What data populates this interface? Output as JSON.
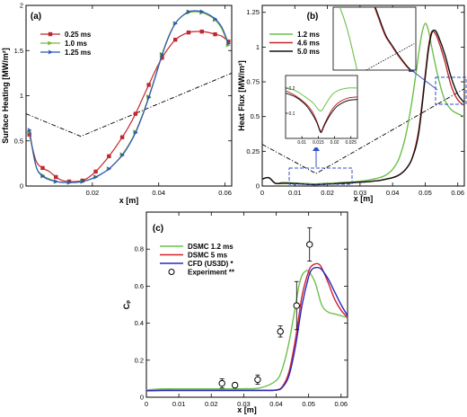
{
  "chart_data": [
    {
      "id": "a",
      "type": "line",
      "panel_label": "(a)",
      "xlabel": "x [m]",
      "ylabel": "Surface Heating [MW/m²]",
      "xlim": [
        0,
        0.062
      ],
      "ylim": [
        0,
        2.0
      ],
      "xticks": [
        0.02,
        0.04,
        0.06
      ],
      "xtick_labels": [
        "0.02",
        "0.04",
        "0.06"
      ],
      "yticks": [
        0,
        0.5,
        1,
        1.5,
        2
      ],
      "ytick_labels": [
        "0",
        "0.5",
        "1",
        "1.5",
        "2"
      ],
      "legend_position": "top-left",
      "series": [
        {
          "name": "0.25 ms",
          "color": "#c0282d",
          "marker": "square",
          "x": [
            0.001,
            0.003,
            0.005,
            0.007,
            0.009,
            0.011,
            0.013,
            0.015,
            0.017,
            0.019,
            0.021,
            0.023,
            0.025,
            0.027,
            0.029,
            0.031,
            0.033,
            0.035,
            0.037,
            0.039,
            0.041,
            0.043,
            0.045,
            0.047,
            0.049,
            0.051,
            0.053,
            0.055,
            0.057,
            0.059,
            0.061
          ],
          "y": [
            0.57,
            0.28,
            0.2,
            0.16,
            0.1,
            0.06,
            0.05,
            0.05,
            0.06,
            0.1,
            0.16,
            0.24,
            0.33,
            0.43,
            0.54,
            0.66,
            0.8,
            0.96,
            1.12,
            1.28,
            1.42,
            1.53,
            1.62,
            1.67,
            1.7,
            1.71,
            1.71,
            1.7,
            1.68,
            1.66,
            1.6
          ]
        },
        {
          "name": "1.0 ms",
          "color": "#7ab83a",
          "marker": "triangle",
          "x": [
            0.001,
            0.003,
            0.005,
            0.007,
            0.009,
            0.011,
            0.013,
            0.015,
            0.017,
            0.019,
            0.021,
            0.023,
            0.025,
            0.027,
            0.029,
            0.031,
            0.033,
            0.035,
            0.037,
            0.039,
            0.041,
            0.043,
            0.045,
            0.047,
            0.049,
            0.051,
            0.053,
            0.055,
            0.057,
            0.059,
            0.061
          ],
          "y": [
            0.6,
            0.22,
            0.12,
            0.08,
            0.05,
            0.04,
            0.04,
            0.04,
            0.05,
            0.07,
            0.1,
            0.14,
            0.19,
            0.26,
            0.35,
            0.46,
            0.6,
            0.78,
            0.99,
            1.22,
            1.46,
            1.66,
            1.8,
            1.88,
            1.92,
            1.93,
            1.92,
            1.89,
            1.84,
            1.74,
            1.56
          ]
        },
        {
          "name": "1.25 ms",
          "color": "#2a55b8",
          "marker": "diamond",
          "x": [
            0.001,
            0.003,
            0.005,
            0.007,
            0.009,
            0.011,
            0.013,
            0.015,
            0.017,
            0.019,
            0.021,
            0.023,
            0.025,
            0.027,
            0.029,
            0.031,
            0.033,
            0.035,
            0.037,
            0.039,
            0.041,
            0.043,
            0.045,
            0.047,
            0.049,
            0.051,
            0.053,
            0.055,
            0.057,
            0.059,
            0.061
          ],
          "y": [
            0.62,
            0.22,
            0.11,
            0.07,
            0.05,
            0.04,
            0.04,
            0.04,
            0.05,
            0.07,
            0.1,
            0.14,
            0.19,
            0.26,
            0.34,
            0.45,
            0.59,
            0.77,
            0.98,
            1.21,
            1.45,
            1.65,
            1.8,
            1.88,
            1.93,
            1.94,
            1.93,
            1.9,
            1.85,
            1.76,
            1.58
          ]
        }
      ]
    },
    {
      "id": "b",
      "type": "line",
      "panel_label": "(b)",
      "xlabel": "x [m]",
      "ylabel": "Heat Flux [MW/m²]",
      "xlim": [
        0,
        0.062
      ],
      "ylim": [
        0,
        1.3
      ],
      "xticks": [
        0,
        0.01,
        0.02,
        0.03,
        0.04,
        0.05,
        0.06
      ],
      "xtick_labels": [
        "0",
        "0.01",
        "0.02",
        "0.03",
        "0.04",
        "0.05",
        "0.06"
      ],
      "yticks": [
        0,
        0.25,
        0.5,
        0.75,
        1,
        1.25
      ],
      "ytick_labels": [
        "0",
        "0.25",
        "0.5",
        "0.75",
        "1",
        "1.25"
      ],
      "legend_position": "top-left",
      "inset_ticks_x": [
        "0.01",
        "0.015",
        "0.02",
        "0.025"
      ],
      "inset_ticks_y": [
        "0.2",
        "0.1"
      ],
      "series": [
        {
          "name": "1.2 ms",
          "color": "#6cc04a",
          "x": [
            0.0,
            0.002,
            0.004,
            0.006,
            0.008,
            0.01,
            0.012,
            0.014,
            0.016,
            0.018,
            0.02,
            0.022,
            0.024,
            0.026,
            0.028,
            0.03,
            0.032,
            0.034,
            0.036,
            0.038,
            0.04,
            0.042,
            0.044,
            0.046,
            0.048,
            0.049,
            0.05,
            0.051,
            0.052,
            0.054,
            0.056,
            0.058,
            0.06,
            0.062
          ],
          "y": [
            0.05,
            0.06,
            0.02,
            0.025,
            0.025,
            0.022,
            0.02,
            0.018,
            0.015,
            0.018,
            0.02,
            0.022,
            0.025,
            0.028,
            0.03,
            0.035,
            0.04,
            0.05,
            0.06,
            0.08,
            0.12,
            0.2,
            0.36,
            0.62,
            0.95,
            1.1,
            1.17,
            1.12,
            1.0,
            0.78,
            0.62,
            0.55,
            0.52,
            0.5
          ]
        },
        {
          "name": "4.6 ms",
          "color": "#c0282d",
          "x": [
            0.0,
            0.002,
            0.004,
            0.006,
            0.008,
            0.01,
            0.012,
            0.014,
            0.016,
            0.018,
            0.02,
            0.022,
            0.024,
            0.026,
            0.028,
            0.03,
            0.032,
            0.034,
            0.036,
            0.038,
            0.04,
            0.042,
            0.044,
            0.046,
            0.048,
            0.05,
            0.051,
            0.052,
            0.053,
            0.054,
            0.056,
            0.058,
            0.06,
            0.062
          ],
          "y": [
            0.05,
            0.06,
            0.02,
            0.02,
            0.02,
            0.018,
            0.015,
            0.012,
            0.01,
            0.012,
            0.014,
            0.016,
            0.02,
            0.022,
            0.025,
            0.028,
            0.03,
            0.035,
            0.04,
            0.05,
            0.06,
            0.08,
            0.12,
            0.2,
            0.4,
            0.8,
            1.0,
            1.11,
            1.1,
            1.05,
            0.9,
            0.72,
            0.62,
            0.58
          ]
        },
        {
          "name": "5.0 ms",
          "color": "#111111",
          "x": [
            0.0,
            0.002,
            0.004,
            0.006,
            0.008,
            0.01,
            0.012,
            0.014,
            0.016,
            0.018,
            0.02,
            0.022,
            0.024,
            0.026,
            0.028,
            0.03,
            0.032,
            0.034,
            0.036,
            0.038,
            0.04,
            0.042,
            0.044,
            0.046,
            0.048,
            0.05,
            0.051,
            0.052,
            0.053,
            0.054,
            0.056,
            0.058,
            0.06,
            0.062
          ],
          "y": [
            0.05,
            0.06,
            0.02,
            0.02,
            0.02,
            0.018,
            0.015,
            0.012,
            0.01,
            0.012,
            0.014,
            0.016,
            0.02,
            0.022,
            0.025,
            0.028,
            0.03,
            0.035,
            0.04,
            0.05,
            0.06,
            0.08,
            0.12,
            0.2,
            0.38,
            0.78,
            0.98,
            1.1,
            1.12,
            1.08,
            0.95,
            0.78,
            0.66,
            0.6
          ]
        }
      ]
    },
    {
      "id": "c",
      "type": "line",
      "panel_label": "(c)",
      "xlabel": "x [m]",
      "ylabel": "Cₚ",
      "xlim": [
        0,
        0.062
      ],
      "ylim": [
        0,
        1.0
      ],
      "xticks": [
        0,
        0.01,
        0.02,
        0.03,
        0.04,
        0.05,
        0.06
      ],
      "xtick_labels": [
        "0",
        "0.01",
        "0.02",
        "0.03",
        "0.04",
        "0.05",
        "0.06"
      ],
      "yticks": [
        0,
        0.2,
        0.4,
        0.6,
        0.8
      ],
      "ytick_labels": [
        "0",
        "0.2",
        "0.4",
        "0.6",
        "0.8"
      ],
      "legend_position": "top-left",
      "series": [
        {
          "name": "DSMC 1.2 ms",
          "color": "#6cc04a",
          "x": [
            0.0,
            0.005,
            0.01,
            0.015,
            0.02,
            0.025,
            0.03,
            0.035,
            0.04,
            0.042,
            0.044,
            0.046,
            0.047,
            0.048,
            0.049,
            0.05,
            0.052,
            0.054,
            0.056,
            0.058,
            0.06,
            0.062
          ],
          "y": [
            0.04,
            0.045,
            0.045,
            0.045,
            0.045,
            0.045,
            0.046,
            0.05,
            0.09,
            0.16,
            0.3,
            0.5,
            0.6,
            0.66,
            0.68,
            0.68,
            0.62,
            0.5,
            0.46,
            0.45,
            0.44,
            0.43
          ]
        },
        {
          "name": "DSMC  5 ms",
          "color": "#d02030",
          "x": [
            0.0,
            0.005,
            0.01,
            0.015,
            0.02,
            0.025,
            0.03,
            0.035,
            0.04,
            0.042,
            0.044,
            0.046,
            0.048,
            0.05,
            0.051,
            0.052,
            0.053,
            0.054,
            0.056,
            0.058,
            0.06,
            0.062
          ],
          "y": [
            0.035,
            0.038,
            0.038,
            0.038,
            0.038,
            0.038,
            0.038,
            0.038,
            0.04,
            0.06,
            0.14,
            0.32,
            0.55,
            0.68,
            0.71,
            0.72,
            0.72,
            0.7,
            0.62,
            0.53,
            0.47,
            0.43
          ]
        },
        {
          "name": "CFD (US3D) *",
          "color": "#2828c0",
          "x": [
            0.0,
            0.005,
            0.01,
            0.015,
            0.02,
            0.025,
            0.03,
            0.035,
            0.04,
            0.042,
            0.044,
            0.046,
            0.048,
            0.05,
            0.051,
            0.052,
            0.053,
            0.054,
            0.056,
            0.058,
            0.06,
            0.062
          ],
          "y": [
            0.035,
            0.036,
            0.036,
            0.036,
            0.036,
            0.036,
            0.036,
            0.036,
            0.038,
            0.055,
            0.12,
            0.28,
            0.5,
            0.65,
            0.69,
            0.7,
            0.7,
            0.69,
            0.64,
            0.57,
            0.5,
            0.44
          ]
        },
        {
          "name": "Experiment **",
          "color": "#000000",
          "marker": "open-circle",
          "x": [
            0.0233,
            0.0273,
            0.0343,
            0.0413,
            0.0463,
            0.0503
          ],
          "y": [
            0.075,
            0.065,
            0.095,
            0.355,
            0.495,
            0.825
          ],
          "err": [
            0.025,
            0.012,
            0.025,
            0.03,
            0.13,
            0.09
          ]
        }
      ]
    }
  ]
}
